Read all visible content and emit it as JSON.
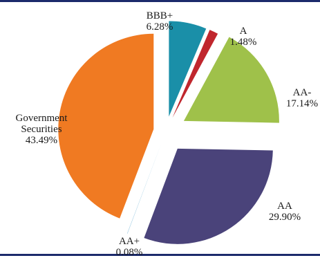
{
  "chart_data": {
    "type": "pie",
    "title": "",
    "exploded": true,
    "slices": [
      {
        "id": "bbbp",
        "label_lines": [
          "BBB+",
          "6.28%"
        ],
        "value": 6.28,
        "color": "#1a8fa8"
      },
      {
        "id": "a",
        "label_lines": [
          "A",
          "1.48%"
        ],
        "value": 1.48,
        "color": "#c0262d"
      },
      {
        "id": "aam",
        "label_lines": [
          "AA-",
          "17.14%"
        ],
        "value": 17.14,
        "color": "#9fc14a"
      },
      {
        "id": "aa",
        "label_lines": [
          "AA",
          "29.90%"
        ],
        "value": 29.9,
        "color": "#4a437a"
      },
      {
        "id": "aap",
        "label_lines": [
          "AA+",
          "0.08%"
        ],
        "value": 0.08,
        "color": "#a9d1e6"
      },
      {
        "id": "gov",
        "label_lines": [
          "Government",
          "Securities",
          "43.49%"
        ],
        "value": 43.49,
        "color": "#f07a22"
      }
    ]
  }
}
